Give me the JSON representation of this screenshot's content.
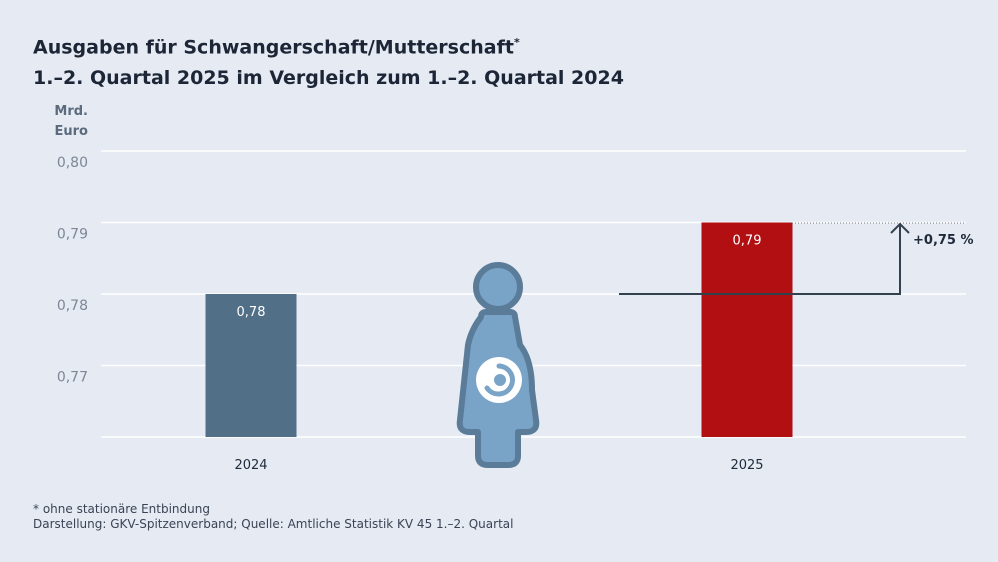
{
  "title": {
    "line1": "Ausgaben für Schwangerschaft/Mutterschaft",
    "line1_mark": "*",
    "line2": "1.–2. Quartal 2025 im Vergleich zum 1.–2. Quartal 2024"
  },
  "chart_data": {
    "type": "bar",
    "categories": [
      "2024",
      "2025"
    ],
    "values": [
      0.78,
      0.79
    ],
    "value_labels": [
      "0,78",
      "0,79"
    ],
    "bar_colors": [
      "#526f88",
      "#b10f12"
    ],
    "ylabel_line1": "Mrd.",
    "ylabel_line2": "Euro",
    "yticks": [
      0.77,
      0.78,
      0.79,
      0.8
    ],
    "ytick_labels": [
      "0,77",
      "0,78",
      "0,79",
      "0,80"
    ],
    "ylim": [
      0.76,
      0.8
    ],
    "change_label": "+0,75 %",
    "grid": true
  },
  "icon": {
    "name": "pregnant-woman-icon"
  },
  "colors": {
    "background": "#e5eaf3",
    "grid": "#ffffff",
    "axis_text": "#7d8796",
    "icon_fill": "#7aa3c8",
    "icon_stroke": "#5b7c99",
    "arrow": "#33414f"
  },
  "footnote": {
    "line1": "* ohne stationäre Entbindung",
    "line2": "Darstellung: GKV-Spitzenverband; Quelle: Amtliche Statistik KV 45 1.–2. Quartal"
  }
}
